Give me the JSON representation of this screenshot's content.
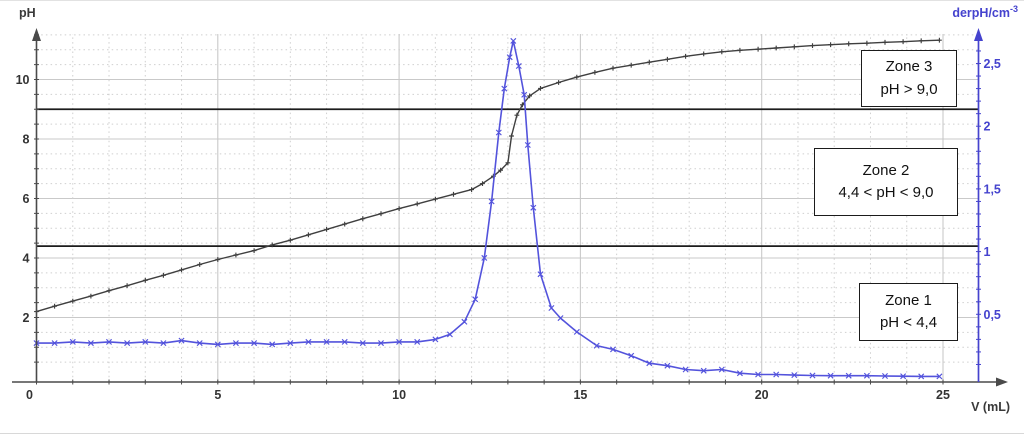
{
  "colors": {
    "ph_curve": "#3f3f3f",
    "derivative_curve": "#5353dc",
    "derivative_axis": "#4543ce",
    "axis": "#4a4a4a",
    "grid_major": "#c9c9c9",
    "grid_minor": "#cfcfcf",
    "reference_line": "#1c1c1c",
    "tick_label": "#333333"
  },
  "zones": [
    {
      "line1": "Zone 3",
      "line2": "pH > 9,0"
    },
    {
      "line1": "Zone 2",
      "line2": "4,4 < pH < 9,0"
    },
    {
      "line1": "Zone 1",
      "line2": "pH < 4,4"
    }
  ],
  "chart_data": {
    "type": "line",
    "title": "",
    "x_axis": {
      "label": "V (mL)",
      "tick_labels": [
        "0",
        "5",
        "10",
        "15",
        "20",
        "25"
      ],
      "tick_values": [
        0,
        5,
        10,
        15,
        20,
        25
      ],
      "minor_step": 1,
      "range": [
        0,
        26
      ]
    },
    "left_axis": {
      "label": "pH",
      "tick_labels": [
        "2",
        "4",
        "6",
        "8",
        "10"
      ],
      "tick_values": [
        2,
        4,
        6,
        8,
        10
      ],
      "minor_step": 0.5,
      "range": [
        0,
        11.8
      ]
    },
    "right_axis": {
      "label_base": "derpH/cm",
      "label_exp": "-3",
      "tick_labels": [
        "0,5",
        "1",
        "1,5",
        "2",
        "2,5"
      ],
      "tick_values": [
        0.5,
        1,
        1.5,
        2,
        2.5
      ],
      "minor_step": 0.1,
      "range": [
        0,
        2.77
      ]
    },
    "reference_lines": [
      {
        "axis": "left",
        "value": 9.0
      },
      {
        "axis": "left",
        "value": 4.4
      }
    ],
    "grid": {
      "h_major_step": 2,
      "h_minor_step": 0.5,
      "v_major_step": 5,
      "v_minor_step": 1
    },
    "series": [
      {
        "name": "pH",
        "axis": "left",
        "marker": "plus",
        "points": [
          [
            0,
            2.2
          ],
          [
            0.5,
            2.38
          ],
          [
            1,
            2.55
          ],
          [
            1.5,
            2.72
          ],
          [
            2,
            2.9
          ],
          [
            2.5,
            3.07
          ],
          [
            3,
            3.25
          ],
          [
            3.5,
            3.42
          ],
          [
            4,
            3.6
          ],
          [
            4.5,
            3.78
          ],
          [
            5,
            3.95
          ],
          [
            5.5,
            4.1
          ],
          [
            6,
            4.25
          ],
          [
            6.5,
            4.44
          ],
          [
            7,
            4.6
          ],
          [
            7.5,
            4.78
          ],
          [
            8,
            4.96
          ],
          [
            8.5,
            5.14
          ],
          [
            9,
            5.32
          ],
          [
            9.5,
            5.49
          ],
          [
            10,
            5.66
          ],
          [
            10.5,
            5.82
          ],
          [
            11,
            5.98
          ],
          [
            11.5,
            6.14
          ],
          [
            12,
            6.3
          ],
          [
            12.3,
            6.5
          ],
          [
            12.6,
            6.75
          ],
          [
            12.8,
            6.95
          ],
          [
            13,
            7.2
          ],
          [
            13.1,
            8.1
          ],
          [
            13.25,
            8.8
          ],
          [
            13.4,
            9.15
          ],
          [
            13.6,
            9.45
          ],
          [
            13.9,
            9.7
          ],
          [
            14.4,
            9.9
          ],
          [
            14.9,
            10.08
          ],
          [
            15.4,
            10.24
          ],
          [
            15.9,
            10.38
          ],
          [
            16.4,
            10.48
          ],
          [
            16.9,
            10.58
          ],
          [
            17.4,
            10.68
          ],
          [
            17.9,
            10.78
          ],
          [
            18.4,
            10.86
          ],
          [
            18.9,
            10.93
          ],
          [
            19.4,
            10.98
          ],
          [
            19.9,
            11.02
          ],
          [
            20.4,
            11.06
          ],
          [
            20.9,
            11.1
          ],
          [
            21.4,
            11.14
          ],
          [
            21.9,
            11.17
          ],
          [
            22.4,
            11.2
          ],
          [
            22.9,
            11.22
          ],
          [
            23.4,
            11.25
          ],
          [
            23.9,
            11.27
          ],
          [
            24.4,
            11.3
          ],
          [
            24.9,
            11.32
          ]
        ]
      },
      {
        "name": "derpH/cm-3",
        "axis": "right",
        "marker": "x",
        "points": [
          [
            0,
            0.27
          ],
          [
            0.5,
            0.27
          ],
          [
            1,
            0.28
          ],
          [
            1.5,
            0.27
          ],
          [
            2,
            0.28
          ],
          [
            2.5,
            0.27
          ],
          [
            3,
            0.28
          ],
          [
            3.5,
            0.27
          ],
          [
            4,
            0.29
          ],
          [
            4.5,
            0.27
          ],
          [
            5,
            0.26
          ],
          [
            5.5,
            0.27
          ],
          [
            6,
            0.27
          ],
          [
            6.5,
            0.26
          ],
          [
            7,
            0.27
          ],
          [
            7.5,
            0.28
          ],
          [
            8,
            0.28
          ],
          [
            8.5,
            0.28
          ],
          [
            9,
            0.27
          ],
          [
            9.5,
            0.27
          ],
          [
            10,
            0.28
          ],
          [
            10.5,
            0.28
          ],
          [
            11,
            0.3
          ],
          [
            11.4,
            0.34
          ],
          [
            11.8,
            0.44
          ],
          [
            12.1,
            0.62
          ],
          [
            12.35,
            0.95
          ],
          [
            12.55,
            1.4
          ],
          [
            12.75,
            1.95
          ],
          [
            12.9,
            2.3
          ],
          [
            13.05,
            2.55
          ],
          [
            13.15,
            2.68
          ],
          [
            13.3,
            2.48
          ],
          [
            13.45,
            2.25
          ],
          [
            13.55,
            1.85
          ],
          [
            13.7,
            1.35
          ],
          [
            13.9,
            0.82
          ],
          [
            14.2,
            0.55
          ],
          [
            14.45,
            0.47
          ],
          [
            14.9,
            0.36
          ],
          [
            15.45,
            0.25
          ],
          [
            15.9,
            0.22
          ],
          [
            16.4,
            0.17
          ],
          [
            16.9,
            0.11
          ],
          [
            17.4,
            0.09
          ],
          [
            17.9,
            0.06
          ],
          [
            18.4,
            0.05
          ],
          [
            18.9,
            0.06
          ],
          [
            19.4,
            0.03
          ],
          [
            19.9,
            0.02
          ],
          [
            20.4,
            0.02
          ],
          [
            20.9,
            0.015
          ],
          [
            21.4,
            0.012
          ],
          [
            21.9,
            0.01
          ],
          [
            22.4,
            0.01
          ],
          [
            22.9,
            0.01
          ],
          [
            23.4,
            0.008
          ],
          [
            23.9,
            0.006
          ],
          [
            24.4,
            0.005
          ],
          [
            24.9,
            0.005
          ]
        ]
      }
    ]
  }
}
